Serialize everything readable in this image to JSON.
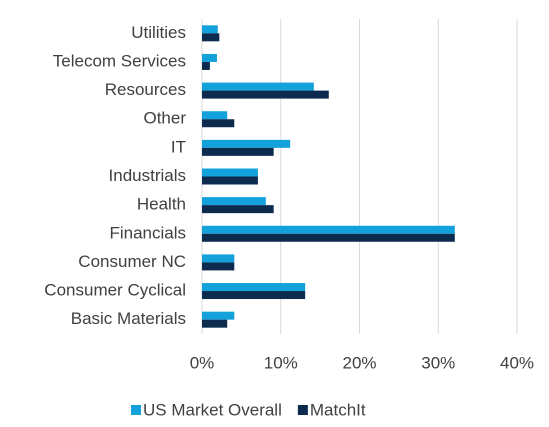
{
  "chart_data": {
    "type": "bar",
    "orientation": "horizontal",
    "categories": [
      "Utilities",
      "Telecom Services",
      "Resources",
      "Other",
      "IT",
      "Industrials",
      "Health",
      "Financials",
      "Consumer NC",
      "Consumer Cyclical",
      "Basic Materials"
    ],
    "series": [
      {
        "name": "US Market Overall",
        "color": "#12a1db",
        "values": [
          2.0,
          1.9,
          14.2,
          3.2,
          11.2,
          7.1,
          8.1,
          32.1,
          4.1,
          13.1,
          4.1
        ]
      },
      {
        "name": "MatchIt",
        "color": "#0c2b4f",
        "values": [
          2.2,
          1.0,
          16.1,
          4.1,
          9.1,
          7.1,
          9.1,
          32.1,
          4.1,
          13.1,
          3.2
        ]
      }
    ],
    "xlim": [
      0,
      40
    ],
    "xticks": [
      {
        "value": 0,
        "label": "0%"
      },
      {
        "value": 10,
        "label": "10%"
      },
      {
        "value": 20,
        "label": "20%"
      },
      {
        "value": 30,
        "label": "30%"
      },
      {
        "value": 40,
        "label": "40%"
      }
    ],
    "grid": true,
    "legend": "bottom"
  }
}
